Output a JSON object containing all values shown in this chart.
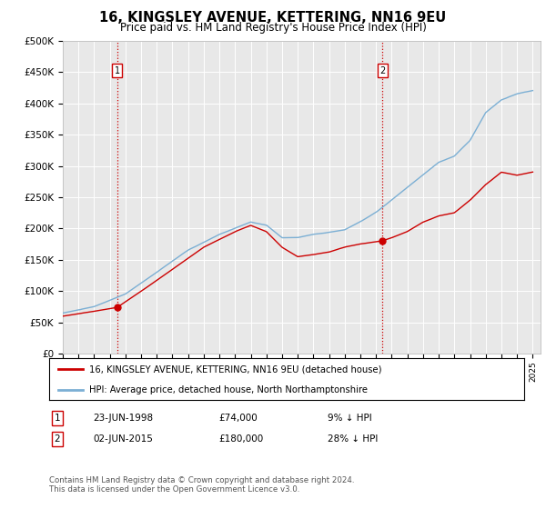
{
  "title": "16, KINGSLEY AVENUE, KETTERING, NN16 9EU",
  "subtitle": "Price paid vs. HM Land Registry's House Price Index (HPI)",
  "ylim": [
    0,
    500000
  ],
  "yticks": [
    0,
    50000,
    100000,
    150000,
    200000,
    250000,
    300000,
    350000,
    400000,
    450000,
    500000
  ],
  "ytick_labels": [
    "£0",
    "£50K",
    "£100K",
    "£150K",
    "£200K",
    "£250K",
    "£300K",
    "£350K",
    "£400K",
    "£450K",
    "£500K"
  ],
  "background_color": "#ffffff",
  "plot_bg_color": "#e8e8e8",
  "grid_color": "#ffffff",
  "line_color_hpi": "#7bafd4",
  "line_color_price": "#cc0000",
  "marker_color": "#cc0000",
  "sale1_x": 1998.47,
  "sale1_y": 74000,
  "sale2_x": 2015.42,
  "sale2_y": 180000,
  "legend_line1": "16, KINGSLEY AVENUE, KETTERING, NN16 9EU (detached house)",
  "legend_line2": "HPI: Average price, detached house, North Northamptonshire",
  "table_row1": [
    "1",
    "23-JUN-1998",
    "£74,000",
    "9% ↓ HPI"
  ],
  "table_row2": [
    "2",
    "02-JUN-2015",
    "£180,000",
    "28% ↓ HPI"
  ],
  "footnote": "Contains HM Land Registry data © Crown copyright and database right 2024.\nThis data is licensed under the Open Government Licence v3.0.",
  "xlim_start": 1995,
  "xlim_end": 2025.5
}
